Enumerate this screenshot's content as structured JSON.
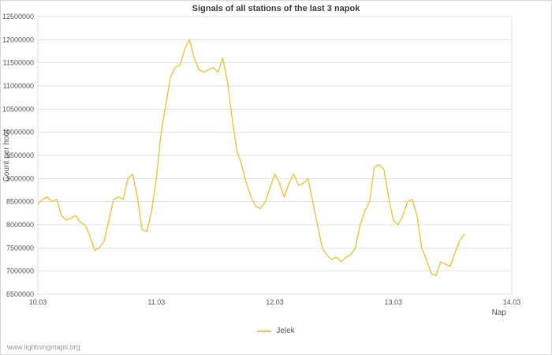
{
  "page": {
    "watermark": "www.lightningmaps.org"
  },
  "chart_data": {
    "type": "line",
    "title": "Signals of all stations of the last 3 napok",
    "xlabel": "Nap",
    "ylabel": "Count per hour",
    "xlim": [
      10.03,
      14.03
    ],
    "ylim": [
      6500000,
      12500000
    ],
    "grid": true,
    "grid_color": "#e2e2e2",
    "axis_text_color": "#545454",
    "legend_position": "bottom-center",
    "x_ticks": [
      {
        "value": 10.03,
        "label": "10.03"
      },
      {
        "value": 11.03,
        "label": "11.03"
      },
      {
        "value": 12.03,
        "label": "12.03"
      },
      {
        "value": 13.03,
        "label": "13.03"
      },
      {
        "value": 14.03,
        "label": "14.03"
      }
    ],
    "y_ticks": [
      6500000,
      7000000,
      7500000,
      8000000,
      8500000,
      9000000,
      9500000,
      10000000,
      10500000,
      11000000,
      11500000,
      12000000,
      12500000
    ],
    "series": [
      {
        "name": "Jelek",
        "color": "#edc240",
        "x_start": 10.03,
        "x_step": 0.04,
        "y": [
          8450000,
          8550000,
          8600000,
          8500000,
          8550000,
          8200000,
          8100000,
          8150000,
          8200000,
          8050000,
          8000000,
          7750000,
          7450000,
          7500000,
          7650000,
          8100000,
          8550000,
          8600000,
          8550000,
          9000000,
          9100000,
          8600000,
          7900000,
          7850000,
          8300000,
          9000000,
          10000000,
          10600000,
          11200000,
          11400000,
          11450000,
          11800000,
          12000000,
          11600000,
          11350000,
          11300000,
          11350000,
          11400000,
          11300000,
          11600000,
          11100000,
          10300000,
          9600000,
          9300000,
          8900000,
          8600000,
          8400000,
          8350000,
          8500000,
          8800000,
          9100000,
          8900000,
          8600000,
          8900000,
          9100000,
          8850000,
          8900000,
          9000000,
          8500000,
          8000000,
          7500000,
          7350000,
          7250000,
          7300000,
          7200000,
          7300000,
          7350000,
          7500000,
          8000000,
          8300000,
          8500000,
          9250000,
          9300000,
          9200000,
          8600000,
          8100000,
          8000000,
          8200000,
          8500000,
          8550000,
          8200000,
          7500000,
          7250000,
          6950000,
          6900000,
          7200000,
          7150000,
          7100000,
          7400000,
          7650000,
          7800000
        ]
      }
    ]
  }
}
